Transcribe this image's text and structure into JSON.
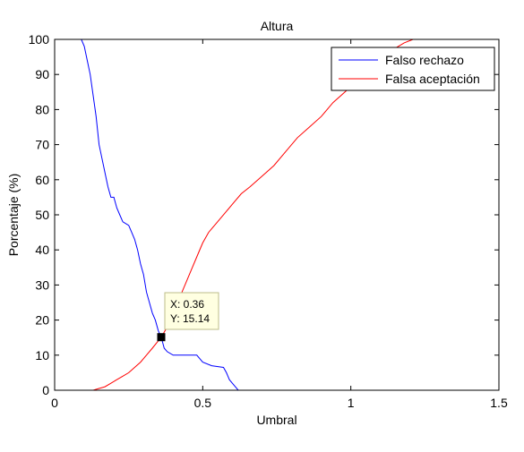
{
  "chart_data": {
    "type": "line",
    "title": "Altura",
    "xlabel": "Umbral",
    "ylabel": "Porcentaje (%)",
    "xlim": [
      0,
      1.5
    ],
    "ylim": [
      0,
      100
    ],
    "xticks": [
      0,
      0.5,
      1,
      1.5
    ],
    "xtick_labels": [
      "0",
      "0.5",
      "1",
      "1.5"
    ],
    "yticks": [
      0,
      10,
      20,
      30,
      40,
      50,
      60,
      70,
      80,
      90,
      100
    ],
    "ytick_labels": [
      "0",
      "10",
      "20",
      "30",
      "40",
      "50",
      "60",
      "70",
      "80",
      "90",
      "100"
    ],
    "grid": false,
    "legend_position": "top-right",
    "series": [
      {
        "name": "Falso rechazo",
        "color": "#0000ff",
        "points": [
          [
            0,
            100
          ],
          [
            0.09,
            100
          ],
          [
            0.1,
            98
          ],
          [
            0.11,
            94
          ],
          [
            0.12,
            90
          ],
          [
            0.13,
            84
          ],
          [
            0.14,
            78
          ],
          [
            0.15,
            70
          ],
          [
            0.16,
            66
          ],
          [
            0.17,
            62
          ],
          [
            0.18,
            58
          ],
          [
            0.19,
            55
          ],
          [
            0.2,
            55
          ],
          [
            0.21,
            52
          ],
          [
            0.22,
            50
          ],
          [
            0.23,
            48
          ],
          [
            0.25,
            47
          ],
          [
            0.26,
            45
          ],
          [
            0.27,
            43
          ],
          [
            0.28,
            40
          ],
          [
            0.29,
            36
          ],
          [
            0.3,
            33
          ],
          [
            0.31,
            28
          ],
          [
            0.32,
            25
          ],
          [
            0.33,
            22
          ],
          [
            0.34,
            20
          ],
          [
            0.35,
            17
          ],
          [
            0.36,
            15.14
          ],
          [
            0.37,
            12
          ],
          [
            0.38,
            11
          ],
          [
            0.4,
            10
          ],
          [
            0.48,
            10
          ],
          [
            0.49,
            9
          ],
          [
            0.5,
            8
          ],
          [
            0.53,
            7
          ],
          [
            0.57,
            6.5
          ],
          [
            0.58,
            5
          ],
          [
            0.59,
            3
          ],
          [
            0.6,
            2
          ],
          [
            0.61,
            1
          ],
          [
            0.62,
            0
          ],
          [
            1.5,
            0
          ]
        ]
      },
      {
        "name": "Falsa aceptación",
        "color": "#ff0000",
        "points": [
          [
            0,
            0
          ],
          [
            0.13,
            0
          ],
          [
            0.15,
            0.5
          ],
          [
            0.17,
            1
          ],
          [
            0.19,
            2
          ],
          [
            0.21,
            3
          ],
          [
            0.23,
            4
          ],
          [
            0.25,
            5
          ],
          [
            0.27,
            6.5
          ],
          [
            0.29,
            8
          ],
          [
            0.31,
            10
          ],
          [
            0.33,
            12
          ],
          [
            0.36,
            15.14
          ],
          [
            0.38,
            18
          ],
          [
            0.4,
            22
          ],
          [
            0.42,
            26
          ],
          [
            0.44,
            30
          ],
          [
            0.46,
            34
          ],
          [
            0.48,
            38
          ],
          [
            0.5,
            42
          ],
          [
            0.52,
            45
          ],
          [
            0.55,
            48
          ],
          [
            0.58,
            51
          ],
          [
            0.6,
            53
          ],
          [
            0.63,
            56
          ],
          [
            0.66,
            58
          ],
          [
            0.7,
            61
          ],
          [
            0.74,
            64
          ],
          [
            0.78,
            68
          ],
          [
            0.82,
            72
          ],
          [
            0.86,
            75
          ],
          [
            0.9,
            78
          ],
          [
            0.94,
            82
          ],
          [
            0.98,
            85
          ],
          [
            1.02,
            88
          ],
          [
            1.06,
            91
          ],
          [
            1.1,
            94
          ],
          [
            1.14,
            97
          ],
          [
            1.18,
            99
          ],
          [
            1.21,
            100
          ],
          [
            1.5,
            100
          ]
        ]
      }
    ],
    "datatip": {
      "x": 0.36,
      "y": 15.14,
      "label_x": "X: 0.36",
      "label_y": "Y: 15.14"
    }
  }
}
